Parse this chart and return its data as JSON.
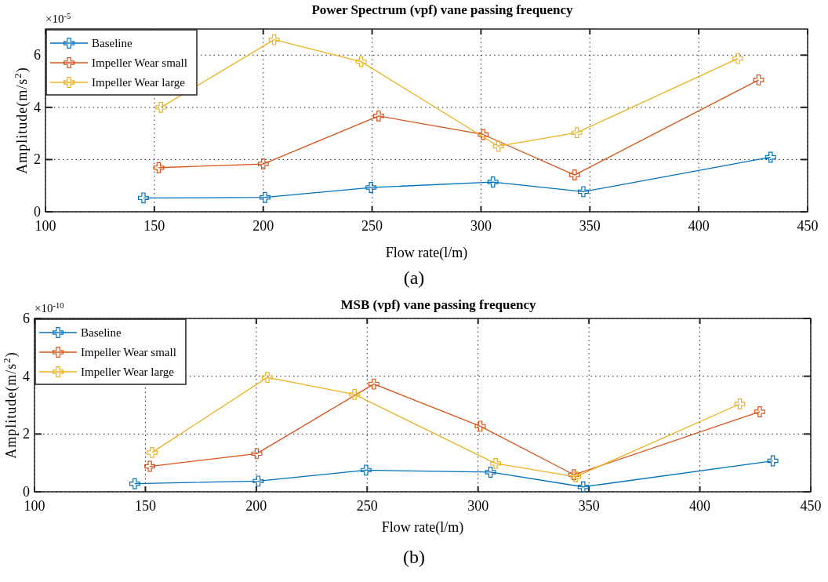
{
  "chart_data": [
    {
      "type": "line",
      "title": "Power Spectrum (vpf) vane passing frequency",
      "xlabel": "Flow rate(l/m)",
      "ylabel": "Amplitude(m/s$^{2}$)",
      "annotations": [
        "×10$^{-5}$",
        "(a)"
      ],
      "xlim": [
        100,
        450
      ],
      "xticks": [
        100,
        150,
        200,
        250,
        300,
        350,
        400,
        450
      ],
      "ylim": [
        0,
        7
      ],
      "yticks": [
        0,
        2,
        4,
        6
      ],
      "grid": true,
      "legend": "top left",
      "marker": "cross",
      "line_style": "solid",
      "series": [
        {
          "name": "Baseline",
          "color": "#0072bd",
          "x": [
            145,
            200.8,
            249.5,
            305.5,
            347,
            433
          ],
          "values": [
            0.53,
            0.55,
            0.93,
            1.14,
            0.77,
            2.09
          ]
        },
        {
          "name": "Impeller Wear small",
          "color": "#d95319",
          "x": [
            152,
            200,
            253,
            301,
            343,
            427.5
          ],
          "values": [
            1.69,
            1.83,
            3.67,
            2.96,
            1.41,
            5.05
          ]
        },
        {
          "name": "Impeller Wear large",
          "color": "#edb120",
          "x": [
            153,
            205,
            245,
            308,
            344,
            418
          ],
          "values": [
            4.0,
            6.59,
            5.75,
            2.51,
            3.03,
            5.87
          ]
        }
      ]
    },
    {
      "type": "line",
      "title": "MSB (vpf) vane passing frequency",
      "xlabel": "Flow rate(l/m)",
      "ylabel": "Amplitude(m/s$^{2}$)",
      "annotations": [
        "×10$^{-10}$",
        "(b)"
      ],
      "xlim": [
        100,
        450
      ],
      "xticks": [
        100,
        150,
        200,
        250,
        300,
        350,
        400,
        450
      ],
      "ylim": [
        0,
        6
      ],
      "yticks": [
        0,
        2,
        4,
        6
      ],
      "grid": true,
      "legend": "top left",
      "marker": "cross",
      "line_style": "solid",
      "series": [
        {
          "name": "Baseline",
          "color": "#0072bd",
          "x": [
            145.2,
            200.9,
            249.5,
            305.6,
            347.4,
            432.9
          ],
          "values": [
            0.28,
            0.37,
            0.75,
            0.68,
            0.17,
            1.07
          ]
        },
        {
          "name": "Impeller Wear small",
          "color": "#d95319",
          "x": [
            152,
            200.2,
            253,
            301,
            343.2,
            427
          ],
          "values": [
            0.88,
            1.32,
            3.73,
            2.27,
            0.59,
            2.77
          ]
        },
        {
          "name": "Impeller Wear large",
          "color": "#edb120",
          "x": [
            153,
            205,
            244.3,
            307.9,
            344,
            418
          ],
          "values": [
            1.36,
            3.96,
            3.37,
            0.98,
            0.52,
            3.04
          ]
        }
      ]
    }
  ]
}
